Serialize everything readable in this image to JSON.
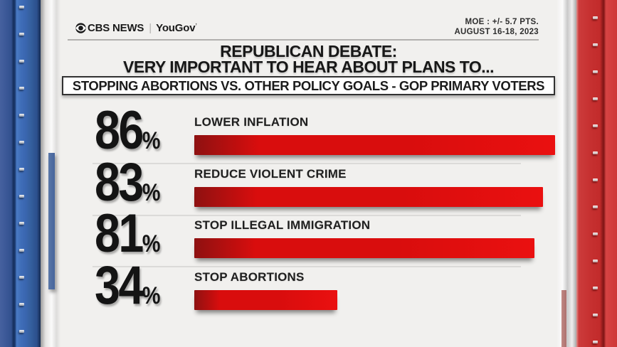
{
  "brand": {
    "cbs": "CBS NEWS",
    "divider": "|",
    "yougov": "YouGov",
    "yougov_mark": "ʼ"
  },
  "meta": {
    "moe_line1": "MOE : +/- 5.7 PTS.",
    "moe_line2": "AUGUST 16-18, 2023"
  },
  "title": {
    "line1": "REPUBLICAN DEBATE:",
    "line2": "VERY IMPORTANT TO HEAR ABOUT PLANS TO..."
  },
  "subtitle": "STOPPING ABORTIONS VS. OTHER POLICY GOALS - GOP PRIMARY VOTERS",
  "colors": {
    "bar_red": "#d90d0d",
    "bar_red_bright": "#ea1010",
    "bar_red_dark": "#8e1111",
    "pillar_blue": "#3a66b0",
    "pillar_red": "#c63030",
    "content_bg": "#f1f0ee",
    "number_color": "#141414"
  },
  "chart_data": {
    "type": "bar",
    "orientation": "horizontal",
    "unit": "%",
    "title": "REPUBLICAN DEBATE: VERY IMPORTANT TO HEAR ABOUT PLANS TO...",
    "subtitle": "STOPPING ABORTIONS VS. OTHER POLICY GOALS - GOP PRIMARY VOTERS",
    "source": "CBS NEWS | YouGov",
    "moe": "+/- 5.7 pts",
    "dates": "August 16-18, 2023",
    "categories": [
      "LOWER INFLATION",
      "REDUCE VIOLENT CRIME",
      "STOP ILLEGAL IMMIGRATION",
      "STOP ABORTIONS"
    ],
    "values": [
      86,
      83,
      81,
      34
    ],
    "xlim": [
      0,
      100
    ],
    "value_labels_shown": true,
    "grid": false,
    "legend": false
  }
}
